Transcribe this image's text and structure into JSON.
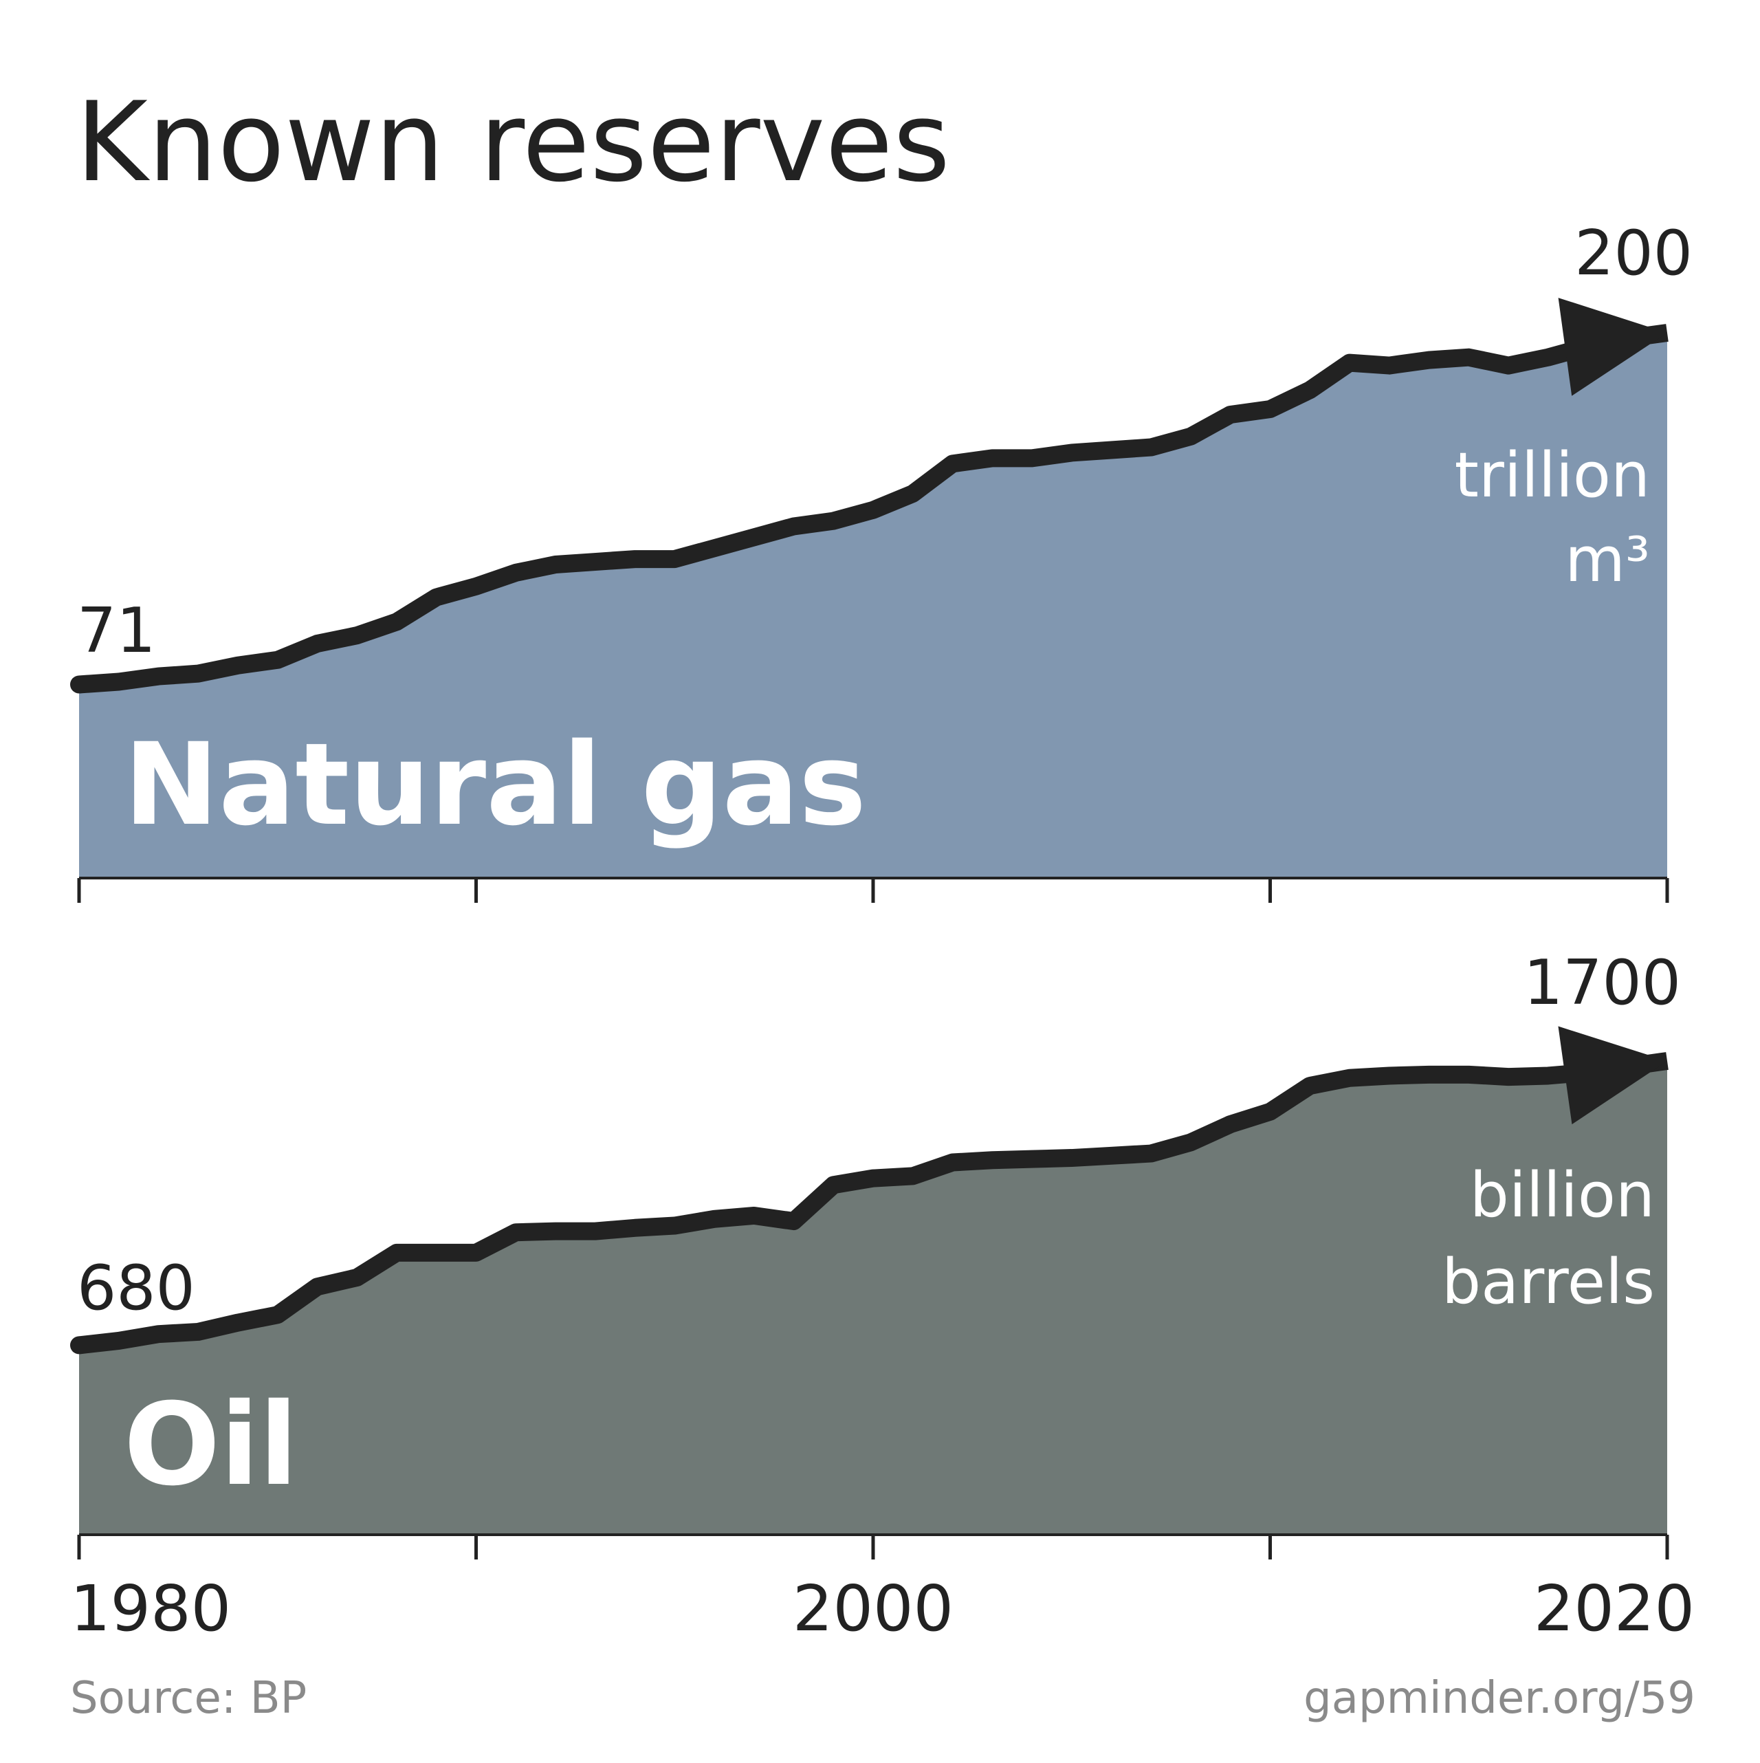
{
  "title": "Known reserves",
  "source": "Source: BP",
  "url": "gapminder.org/59",
  "chart_data": [
    {
      "type": "area",
      "x": [
        1980,
        1981,
        1982,
        1983,
        1984,
        1985,
        1986,
        1987,
        1988,
        1989,
        1990,
        1991,
        1992,
        1993,
        1994,
        1995,
        1996,
        1997,
        1998,
        1999,
        2000,
        2001,
        2002,
        2003,
        2004,
        2005,
        2006,
        2007,
        2008,
        2009,
        2010,
        2011,
        2012,
        2013,
        2014,
        2015,
        2016,
        2017,
        2018,
        2019,
        2020
      ],
      "series": [
        {
          "name": "Natural gas",
          "color": "#8197b0",
          "values": [
            71,
            72,
            74,
            75,
            78,
            80,
            86,
            89,
            94,
            103,
            107,
            112,
            115,
            116,
            117,
            117,
            121,
            125,
            129,
            131,
            135,
            141,
            152,
            154,
            154,
            156,
            157,
            158,
            162,
            170,
            172,
            179,
            189,
            188,
            190,
            191,
            188,
            191,
            195,
            198,
            200
          ]
        }
      ],
      "unit": [
        "trillion",
        "m³"
      ],
      "line_color": "#222222",
      "xlim": [
        1980,
        2020
      ],
      "ylim": [
        0,
        200
      ],
      "xticks": [
        1980,
        2000,
        2020
      ],
      "xminorticks": [
        1990,
        2010
      ],
      "show_xtick_labels": false
    },
    {
      "type": "area",
      "x": [
        1980,
        1981,
        1982,
        1983,
        1984,
        1985,
        1986,
        1987,
        1988,
        1989,
        1990,
        1991,
        1992,
        1993,
        1994,
        1995,
        1996,
        1997,
        1998,
        1999,
        2000,
        2001,
        2002,
        2003,
        2004,
        2005,
        2006,
        2007,
        2008,
        2009,
        2010,
        2011,
        2012,
        2013,
        2014,
        2015,
        2016,
        2017,
        2018,
        2019,
        2020
      ],
      "series": [
        {
          "name": "Oil",
          "color": "#6f7976",
          "values": [
            680,
            696,
            720,
            728,
            761,
            789,
            890,
            923,
            1012,
            1012,
            1012,
            1085,
            1089,
            1089,
            1101,
            1109,
            1133,
            1145,
            1125,
            1255,
            1279,
            1287,
            1336,
            1344,
            1348,
            1352,
            1360,
            1368,
            1408,
            1473,
            1518,
            1611,
            1639,
            1647,
            1651,
            1651,
            1643,
            1647,
            1659,
            1680,
            1700
          ]
        }
      ],
      "unit": [
        "billion",
        "barrels"
      ],
      "line_color": "#222222",
      "xlim": [
        1980,
        2020
      ],
      "ylim": [
        0,
        1700
      ],
      "xticks": [
        1980,
        2000,
        2020
      ],
      "xminorticks": [
        1990,
        2010
      ],
      "show_xtick_labels": true
    }
  ]
}
